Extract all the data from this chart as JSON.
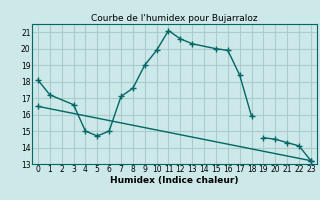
{
  "title": "Courbe de l'humidex pour Bujarraloz",
  "xlabel": "Humidex (Indice chaleur)",
  "bg_color": "#cce8e8",
  "grid_color": "#aacccc",
  "line_color": "#006666",
  "ylim": [
    13,
    21.5
  ],
  "xlim": [
    -0.5,
    23.5
  ],
  "yticks": [
    13,
    14,
    15,
    16,
    17,
    18,
    19,
    20,
    21
  ],
  "xticks": [
    0,
    1,
    2,
    3,
    4,
    5,
    6,
    7,
    8,
    9,
    10,
    11,
    12,
    13,
    14,
    15,
    16,
    17,
    18,
    19,
    20,
    21,
    22,
    23
  ],
  "line1_x": [
    0,
    1,
    3,
    4,
    5,
    6,
    7,
    8,
    9,
    10,
    11,
    12,
    13,
    15,
    16,
    17,
    18
  ],
  "line1_y": [
    18.1,
    17.2,
    16.6,
    15.0,
    14.7,
    15.0,
    17.1,
    17.6,
    19.0,
    19.9,
    21.1,
    20.6,
    20.3,
    20.0,
    19.9,
    18.4,
    15.9
  ],
  "line2_x": [
    19,
    20,
    21,
    22,
    23
  ],
  "line2_y": [
    14.6,
    14.5,
    14.3,
    14.1,
    13.2
  ],
  "line3_x": [
    0,
    23
  ],
  "line3_y": [
    16.5,
    13.2
  ],
  "title_fontsize": 6.5,
  "xlabel_fontsize": 6.5,
  "tick_fontsize": 5.5
}
